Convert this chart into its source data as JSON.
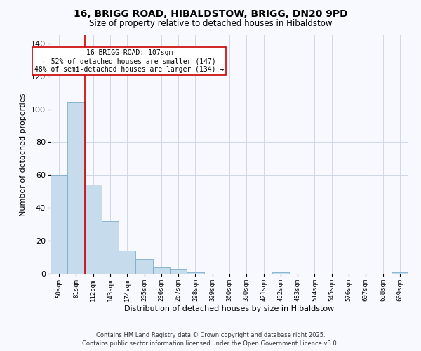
{
  "title": "16, BRIGG ROAD, HIBALDSTOW, BRIGG, DN20 9PD",
  "subtitle": "Size of property relative to detached houses in Hibaldstow",
  "xlabel": "Distribution of detached houses by size in Hibaldstow",
  "ylabel": "Number of detached properties",
  "bin_labels": [
    "50sqm",
    "81sqm",
    "112sqm",
    "143sqm",
    "174sqm",
    "205sqm",
    "236sqm",
    "267sqm",
    "298sqm",
    "329sqm",
    "360sqm",
    "390sqm",
    "421sqm",
    "452sqm",
    "483sqm",
    "514sqm",
    "545sqm",
    "576sqm",
    "607sqm",
    "638sqm",
    "669sqm"
  ],
  "bar_heights": [
    60,
    104,
    54,
    32,
    14,
    9,
    4,
    3,
    1,
    0,
    0,
    0,
    0,
    1,
    0,
    0,
    0,
    0,
    0,
    0,
    1
  ],
  "bar_color": "#c6dcec",
  "bar_edge_color": "#7aaecb",
  "vline_x_idx": 1.5,
  "vline_color": "#cc0000",
  "annotation_line1": "16 BRIGG ROAD: 107sqm",
  "annotation_line2": "← 52% of detached houses are smaller (147)",
  "annotation_line3": "48% of semi-detached houses are larger (134) →",
  "ylim": [
    0,
    145
  ],
  "yticks": [
    0,
    20,
    40,
    60,
    80,
    100,
    120,
    140
  ],
  "background_color": "#f8f8ff",
  "grid_color": "#d0d8e8",
  "footnote1": "Contains HM Land Registry data © Crown copyright and database right 2025.",
  "footnote2": "Contains public sector information licensed under the Open Government Licence v3.0."
}
